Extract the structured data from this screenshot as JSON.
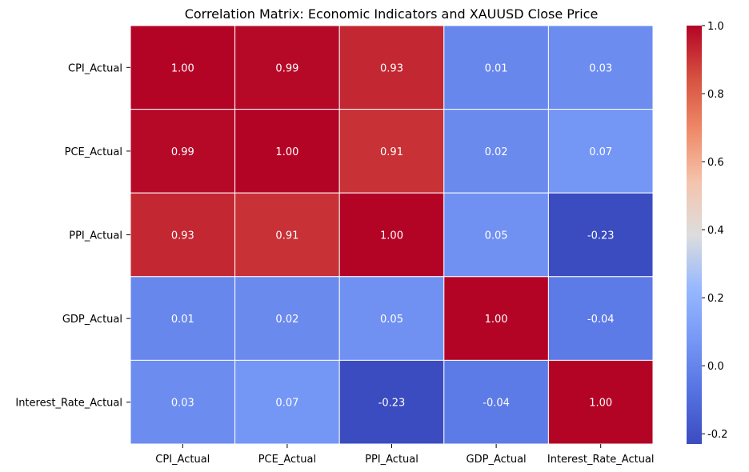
{
  "chart_data": {
    "type": "heatmap",
    "title": "Correlation Matrix: Economic Indicators and XAUUSD Close Price",
    "x_categories": [
      "CPI_Actual",
      "PCE_Actual",
      "PPI_Actual",
      "GDP_Actual",
      "Interest_Rate_Actual"
    ],
    "y_categories": [
      "CPI_Actual",
      "PCE_Actual",
      "PPI_Actual",
      "GDP_Actual",
      "Interest_Rate_Actual"
    ],
    "values": [
      [
        1.0,
        0.99,
        0.93,
        0.01,
        0.03
      ],
      [
        0.99,
        1.0,
        0.91,
        0.02,
        0.07
      ],
      [
        0.93,
        0.91,
        1.0,
        0.05,
        -0.23
      ],
      [
        0.01,
        0.02,
        0.05,
        1.0,
        -0.04
      ],
      [
        0.03,
        0.07,
        -0.23,
        -0.04,
        1.0
      ]
    ],
    "colormap": "coolwarm",
    "colorbar": {
      "range": [
        -0.23,
        1.0
      ],
      "ticks": [
        "-0.2",
        "0.0",
        "0.2",
        "0.4",
        "0.6",
        "0.8",
        "1.0"
      ],
      "tick_values": [
        -0.2,
        0.0,
        0.2,
        0.4,
        0.6,
        0.8,
        1.0
      ]
    },
    "annotations_format": "0.00",
    "colors": {
      "low": "#3b4cc0",
      "mid": "#dddddd",
      "high": "#b40426",
      "grid_line": "#ffffff"
    }
  }
}
